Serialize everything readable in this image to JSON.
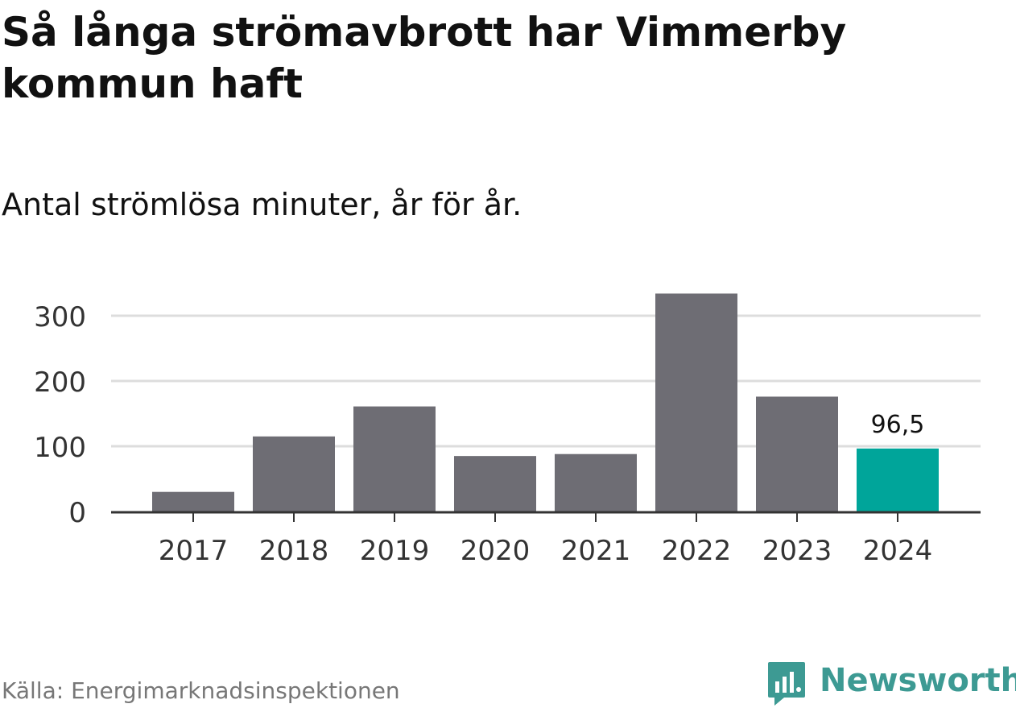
{
  "title": "Så långa strömavbrott har Vimmerby kommun haft",
  "subtitle": "Antal strömlösa minuter, år för år.",
  "source": "Källa: Energimarknadsinspektionen",
  "logo": {
    "text": "Newsworthy",
    "icon": "newsworthy-chat-bars-icon",
    "color": "#3d9a93"
  },
  "colors": {
    "bar": "#6e6d74",
    "highlight": "#00a59a",
    "grid": "#dddddd",
    "axis": "#333333"
  },
  "chart_data": {
    "type": "bar",
    "title": "Så långa strömavbrott har Vimmerby kommun haft",
    "subtitle": "Antal strömlösa minuter, år för år.",
    "xlabel": "",
    "ylabel": "",
    "categories": [
      "2017",
      "2018",
      "2019",
      "2020",
      "2021",
      "2022",
      "2023",
      "2024"
    ],
    "values": [
      30,
      115,
      161,
      85,
      88,
      334,
      176,
      96.5
    ],
    "highlight_index": 7,
    "data_labels": [
      {
        "index": 7,
        "text": "96,5"
      }
    ],
    "yticks": [
      0,
      100,
      200,
      300
    ],
    "ytick_labels": [
      "0",
      "100",
      "200",
      "300"
    ],
    "ylim": [
      0,
      340
    ],
    "grid": true,
    "legend": "none"
  }
}
